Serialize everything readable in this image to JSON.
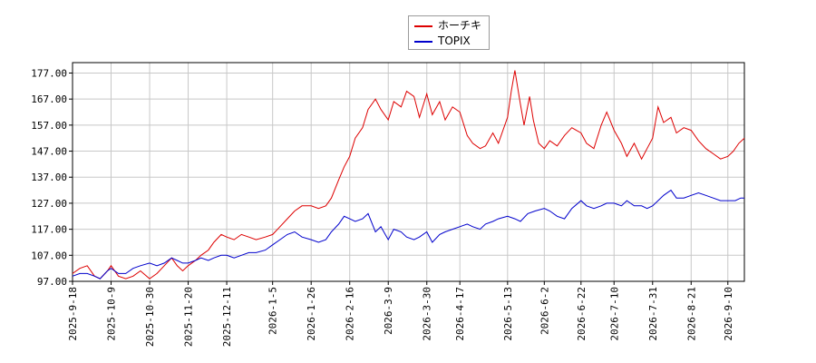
{
  "chart_data": {
    "type": "line",
    "title": "",
    "xlabel": "",
    "ylabel": "",
    "ylim": [
      97.0,
      181.0
    ],
    "yticks": [
      "97.00",
      "107.00",
      "117.00",
      "127.00",
      "137.00",
      "147.00",
      "157.00",
      "167.00",
      "177.00"
    ],
    "ytick_values": [
      97,
      107,
      117,
      127,
      137,
      147,
      157,
      167,
      177
    ],
    "xlim": [
      "2025-09-18",
      "2026-09-19"
    ],
    "xticks": [
      "2025-9-18",
      "2025-10-9",
      "2025-10-30",
      "2025-11-20",
      "2025-12-11",
      "2026-1-5",
      "2026-1-26",
      "2026-2-16",
      "2026-3-9",
      "2026-3-30",
      "2026-4-17",
      "2026-5-13",
      "2026-6-2",
      "2026-6-22",
      "2026-7-10",
      "2026-7-31",
      "2026-8-21",
      "2026-9-10"
    ],
    "xtick_dates": [
      "2025-09-18",
      "2025-10-09",
      "2025-10-30",
      "2025-11-20",
      "2025-12-11",
      "2026-01-05",
      "2026-01-26",
      "2026-02-16",
      "2026-03-09",
      "2026-03-30",
      "2026-04-17",
      "2026-05-13",
      "2026-06-02",
      "2026-06-22",
      "2026-07-10",
      "2026-07-31",
      "2026-08-21",
      "2026-09-10"
    ],
    "grid": true,
    "legend_position": "top-center",
    "series": [
      {
        "name": "ホーチキ",
        "color": "#dd0000",
        "points": [
          [
            "2025-09-18",
            100
          ],
          [
            "2025-09-22",
            102
          ],
          [
            "2025-09-26",
            103
          ],
          [
            "2025-09-30",
            99
          ],
          [
            "2025-10-03",
            98
          ],
          [
            "2025-10-07",
            101
          ],
          [
            "2025-10-09",
            103
          ],
          [
            "2025-10-13",
            99
          ],
          [
            "2025-10-17",
            98
          ],
          [
            "2025-10-21",
            99
          ],
          [
            "2025-10-25",
            101
          ],
          [
            "2025-10-30",
            98
          ],
          [
            "2025-11-03",
            100
          ],
          [
            "2025-11-07",
            103
          ],
          [
            "2025-11-11",
            106
          ],
          [
            "2025-11-14",
            103
          ],
          [
            "2025-11-17",
            101
          ],
          [
            "2025-11-20",
            103
          ],
          [
            "2025-11-24",
            105
          ],
          [
            "2025-11-27",
            107
          ],
          [
            "2025-12-01",
            109
          ],
          [
            "2025-12-04",
            112
          ],
          [
            "2025-12-08",
            115
          ],
          [
            "2025-12-11",
            114
          ],
          [
            "2025-12-15",
            113
          ],
          [
            "2025-12-19",
            115
          ],
          [
            "2025-12-23",
            114
          ],
          [
            "2025-12-27",
            113
          ],
          [
            "2026-01-01",
            114
          ],
          [
            "2026-01-05",
            115
          ],
          [
            "2026-01-09",
            118
          ],
          [
            "2026-01-13",
            121
          ],
          [
            "2026-01-17",
            124
          ],
          [
            "2026-01-21",
            126
          ],
          [
            "2026-01-26",
            126
          ],
          [
            "2026-01-30",
            125
          ],
          [
            "2026-02-03",
            126
          ],
          [
            "2026-02-06",
            129
          ],
          [
            "2026-02-10",
            136
          ],
          [
            "2026-02-13",
            141
          ],
          [
            "2026-02-16",
            145
          ],
          [
            "2026-02-19",
            152
          ],
          [
            "2026-02-23",
            156
          ],
          [
            "2026-02-26",
            163
          ],
          [
            "2026-03-02",
            167
          ],
          [
            "2026-03-05",
            163
          ],
          [
            "2026-03-09",
            159
          ],
          [
            "2026-03-12",
            166
          ],
          [
            "2026-03-16",
            164
          ],
          [
            "2026-03-19",
            170
          ],
          [
            "2026-03-23",
            168
          ],
          [
            "2026-03-26",
            160
          ],
          [
            "2026-03-30",
            169
          ],
          [
            "2026-04-02",
            161
          ],
          [
            "2026-04-06",
            166
          ],
          [
            "2026-04-09",
            159
          ],
          [
            "2026-04-13",
            164
          ],
          [
            "2026-04-17",
            162
          ],
          [
            "2026-04-21",
            153
          ],
          [
            "2026-04-24",
            150
          ],
          [
            "2026-04-28",
            148
          ],
          [
            "2026-05-01",
            149
          ],
          [
            "2026-05-05",
            154
          ],
          [
            "2026-05-08",
            150
          ],
          [
            "2026-05-13",
            160
          ],
          [
            "2026-05-15",
            170
          ],
          [
            "2026-05-17",
            178
          ],
          [
            "2026-05-20",
            165
          ],
          [
            "2026-05-22",
            157
          ],
          [
            "2026-05-25",
            168
          ],
          [
            "2026-05-27",
            159
          ],
          [
            "2026-05-30",
            150
          ],
          [
            "2026-06-02",
            148
          ],
          [
            "2026-06-05",
            151
          ],
          [
            "2026-06-09",
            149
          ],
          [
            "2026-06-13",
            153
          ],
          [
            "2026-06-17",
            156
          ],
          [
            "2026-06-22",
            154
          ],
          [
            "2026-06-25",
            150
          ],
          [
            "2026-06-29",
            148
          ],
          [
            "2026-07-03",
            157
          ],
          [
            "2026-07-06",
            162
          ],
          [
            "2026-07-10",
            155
          ],
          [
            "2026-07-14",
            150
          ],
          [
            "2026-07-17",
            145
          ],
          [
            "2026-07-21",
            150
          ],
          [
            "2026-07-25",
            144
          ],
          [
            "2026-07-28",
            148
          ],
          [
            "2026-07-31",
            152
          ],
          [
            "2026-08-03",
            164
          ],
          [
            "2026-08-06",
            158
          ],
          [
            "2026-08-10",
            160
          ],
          [
            "2026-08-13",
            154
          ],
          [
            "2026-08-17",
            156
          ],
          [
            "2026-08-21",
            155
          ],
          [
            "2026-08-25",
            151
          ],
          [
            "2026-08-29",
            148
          ],
          [
            "2026-09-02",
            146
          ],
          [
            "2026-09-06",
            144
          ],
          [
            "2026-09-10",
            145
          ],
          [
            "2026-09-13",
            147
          ],
          [
            "2026-09-16",
            150
          ],
          [
            "2026-09-19",
            152
          ]
        ]
      },
      {
        "name": "TOPIX",
        "color": "#0000cc",
        "points": [
          [
            "2025-09-18",
            99
          ],
          [
            "2025-09-22",
            100
          ],
          [
            "2025-09-26",
            100
          ],
          [
            "2025-09-30",
            99
          ],
          [
            "2025-10-03",
            98
          ],
          [
            "2025-10-07",
            101
          ],
          [
            "2025-10-09",
            102
          ],
          [
            "2025-10-13",
            100
          ],
          [
            "2025-10-17",
            100
          ],
          [
            "2025-10-21",
            102
          ],
          [
            "2025-10-25",
            103
          ],
          [
            "2025-10-30",
            104
          ],
          [
            "2025-11-03",
            103
          ],
          [
            "2025-11-07",
            104
          ],
          [
            "2025-11-11",
            106
          ],
          [
            "2025-11-14",
            105
          ],
          [
            "2025-11-17",
            104
          ],
          [
            "2025-11-20",
            104
          ],
          [
            "2025-11-24",
            105
          ],
          [
            "2025-11-27",
            106
          ],
          [
            "2025-12-01",
            105
          ],
          [
            "2025-12-04",
            106
          ],
          [
            "2025-12-08",
            107
          ],
          [
            "2025-12-11",
            107
          ],
          [
            "2025-12-15",
            106
          ],
          [
            "2025-12-19",
            107
          ],
          [
            "2025-12-23",
            108
          ],
          [
            "2025-12-27",
            108
          ],
          [
            "2026-01-01",
            109
          ],
          [
            "2026-01-05",
            111
          ],
          [
            "2026-01-09",
            113
          ],
          [
            "2026-01-13",
            115
          ],
          [
            "2026-01-17",
            116
          ],
          [
            "2026-01-21",
            114
          ],
          [
            "2026-01-26",
            113
          ],
          [
            "2026-01-30",
            112
          ],
          [
            "2026-02-03",
            113
          ],
          [
            "2026-02-06",
            116
          ],
          [
            "2026-02-10",
            119
          ],
          [
            "2026-02-13",
            122
          ],
          [
            "2026-02-16",
            121
          ],
          [
            "2026-02-19",
            120
          ],
          [
            "2026-02-23",
            121
          ],
          [
            "2026-02-26",
            123
          ],
          [
            "2026-03-02",
            116
          ],
          [
            "2026-03-05",
            118
          ],
          [
            "2026-03-09",
            113
          ],
          [
            "2026-03-12",
            117
          ],
          [
            "2026-03-16",
            116
          ],
          [
            "2026-03-19",
            114
          ],
          [
            "2026-03-23",
            113
          ],
          [
            "2026-03-26",
            114
          ],
          [
            "2026-03-30",
            116
          ],
          [
            "2026-04-02",
            112
          ],
          [
            "2026-04-06",
            115
          ],
          [
            "2026-04-09",
            116
          ],
          [
            "2026-04-13",
            117
          ],
          [
            "2026-04-17",
            118
          ],
          [
            "2026-04-21",
            119
          ],
          [
            "2026-04-24",
            118
          ],
          [
            "2026-04-28",
            117
          ],
          [
            "2026-05-01",
            119
          ],
          [
            "2026-05-05",
            120
          ],
          [
            "2026-05-08",
            121
          ],
          [
            "2026-05-13",
            122
          ],
          [
            "2026-05-17",
            121
          ],
          [
            "2026-05-20",
            120
          ],
          [
            "2026-05-24",
            123
          ],
          [
            "2026-05-28",
            124
          ],
          [
            "2026-06-02",
            125
          ],
          [
            "2026-06-05",
            124
          ],
          [
            "2026-06-09",
            122
          ],
          [
            "2026-06-13",
            121
          ],
          [
            "2026-06-17",
            125
          ],
          [
            "2026-06-22",
            128
          ],
          [
            "2026-06-25",
            126
          ],
          [
            "2026-06-29",
            125
          ],
          [
            "2026-07-03",
            126
          ],
          [
            "2026-07-06",
            127
          ],
          [
            "2026-07-10",
            127
          ],
          [
            "2026-07-14",
            126
          ],
          [
            "2026-07-17",
            128
          ],
          [
            "2026-07-21",
            126
          ],
          [
            "2026-07-25",
            126
          ],
          [
            "2026-07-28",
            125
          ],
          [
            "2026-07-31",
            126
          ],
          [
            "2026-08-03",
            128
          ],
          [
            "2026-08-06",
            130
          ],
          [
            "2026-08-10",
            132
          ],
          [
            "2026-08-13",
            129
          ],
          [
            "2026-08-17",
            129
          ],
          [
            "2026-08-21",
            130
          ],
          [
            "2026-08-25",
            131
          ],
          [
            "2026-08-29",
            130
          ],
          [
            "2026-09-02",
            129
          ],
          [
            "2026-09-06",
            128
          ],
          [
            "2026-09-10",
            128
          ],
          [
            "2026-09-14",
            128
          ],
          [
            "2026-09-17",
            129
          ],
          [
            "2026-09-19",
            129
          ]
        ]
      }
    ]
  }
}
